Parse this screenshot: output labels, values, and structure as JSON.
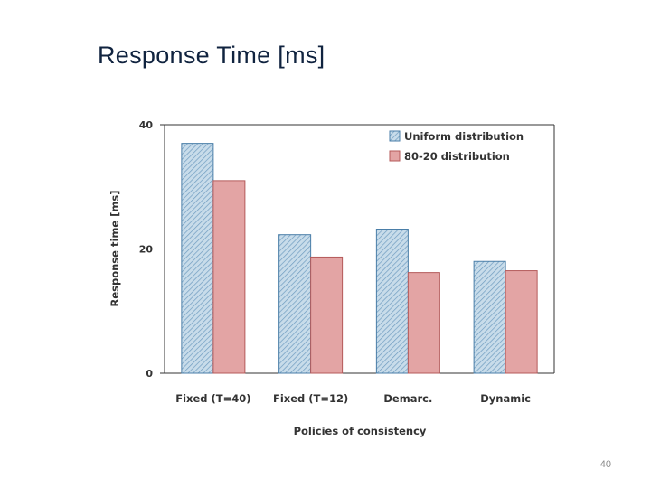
{
  "slide": {
    "title": "Response Time [ms]",
    "page_number": "40"
  },
  "colors": {
    "uniform_fill": "#c8dcea",
    "uniform_hatch": "#6f9cc0",
    "uniform_stroke": "#4a7ea8",
    "eighty_fill": "#e3a4a4",
    "eighty_stroke": "#b45a5a",
    "axis": "#333333"
  },
  "chart_data": {
    "type": "bar",
    "title": "",
    "xlabel": "Policies of consistency",
    "ylabel": "Response time [ms]",
    "ylim": [
      0,
      40
    ],
    "yticks": [
      "0",
      "20",
      "40"
    ],
    "grid": false,
    "legend_position": "top-right",
    "categories": [
      "Fixed (T=40)",
      "Fixed (T=12)",
      "Demarc.",
      "Dynamic"
    ],
    "series": [
      {
        "name": "Uniform distribution",
        "values": [
          37,
          22.3,
          23.2,
          18
        ]
      },
      {
        "name": "80-20 distribution",
        "values": [
          31,
          18.7,
          16.2,
          16.5
        ]
      }
    ]
  }
}
